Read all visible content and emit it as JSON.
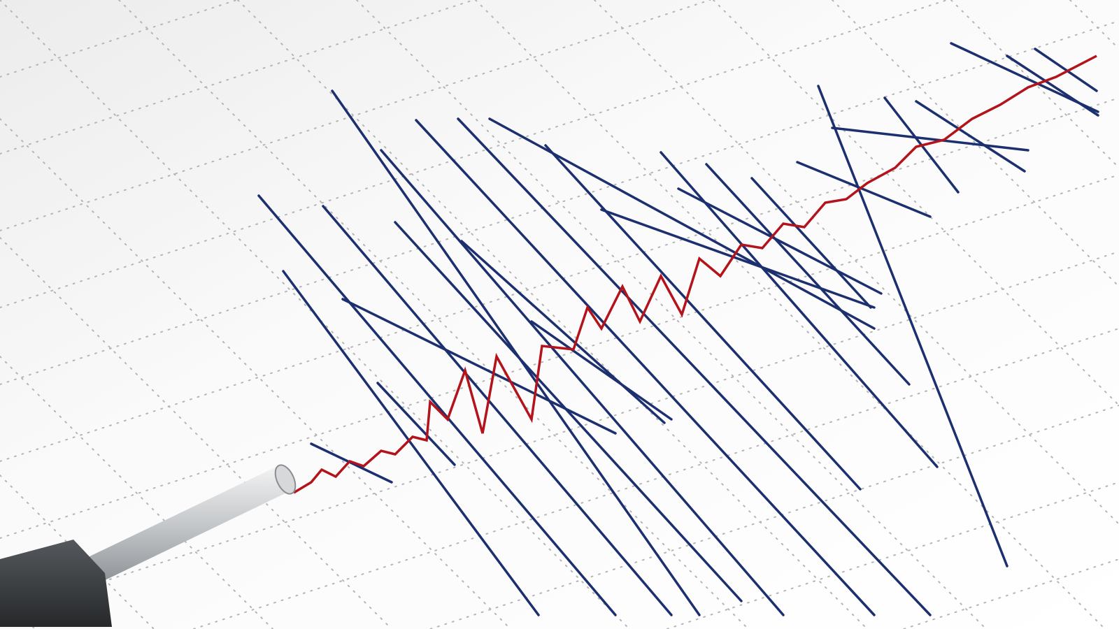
{
  "image": {
    "subject": "seismograph-recording",
    "colors": {
      "paper": "#f7f7f7",
      "grid": "#b5b5b5",
      "trace_blue": "#1c2f6e",
      "trace_red": "#b3131b",
      "stylus_body": "#3a3d40",
      "stylus_rod": "#c9cccf"
    }
  }
}
